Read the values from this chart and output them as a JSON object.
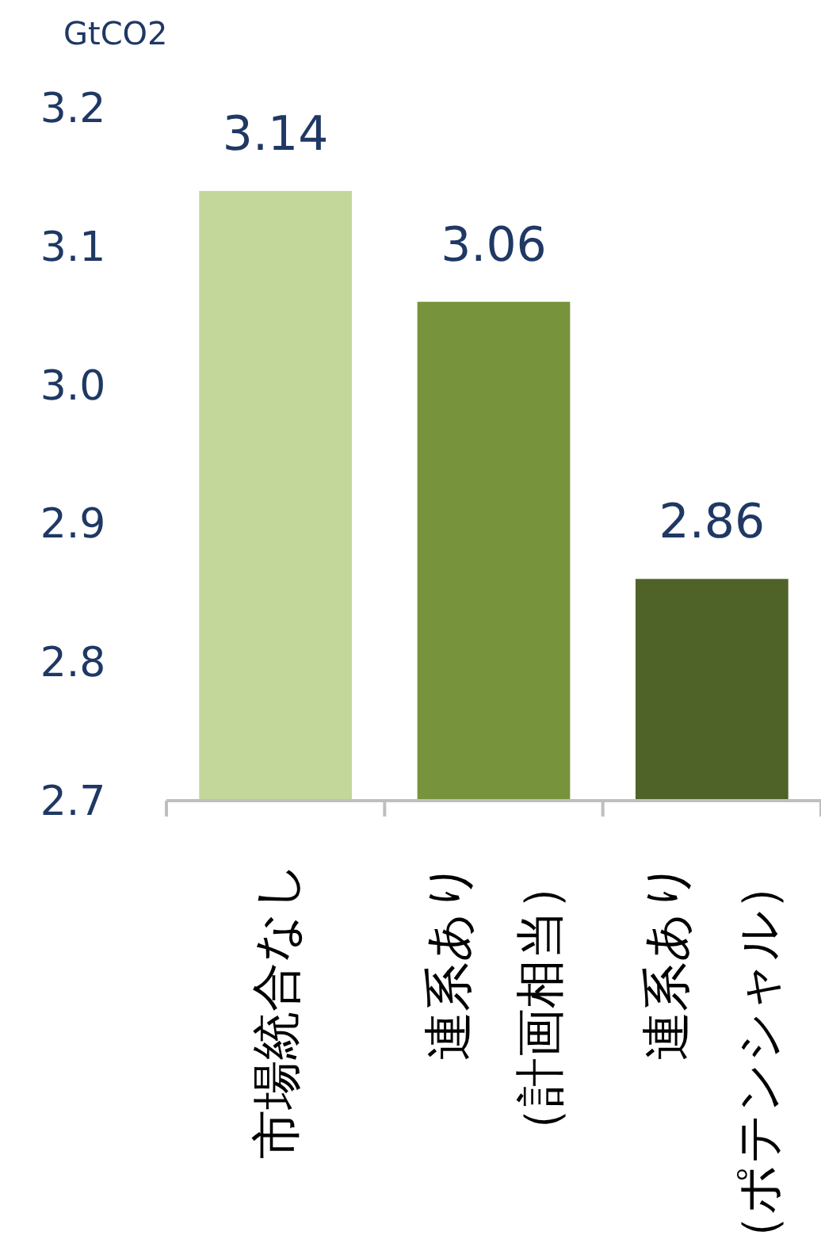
{
  "chart_data": {
    "type": "bar",
    "ylabel": "GtCO2",
    "categories": [
      "市場統合なし",
      "連系あり（計画相当）",
      "連系あり（ポテンシャル）"
    ],
    "values": [
      3.14,
      3.06,
      2.86
    ],
    "colors": [
      "#c4d79b",
      "#77933c",
      "#4f6228"
    ],
    "ylim": [
      2.7,
      3.2
    ],
    "yticks": [
      2.7,
      2.8,
      2.9,
      {
        "value": 3.0,
        "label": "3.0"
      },
      3.1,
      3.2
    ],
    "data_labels": true
  }
}
